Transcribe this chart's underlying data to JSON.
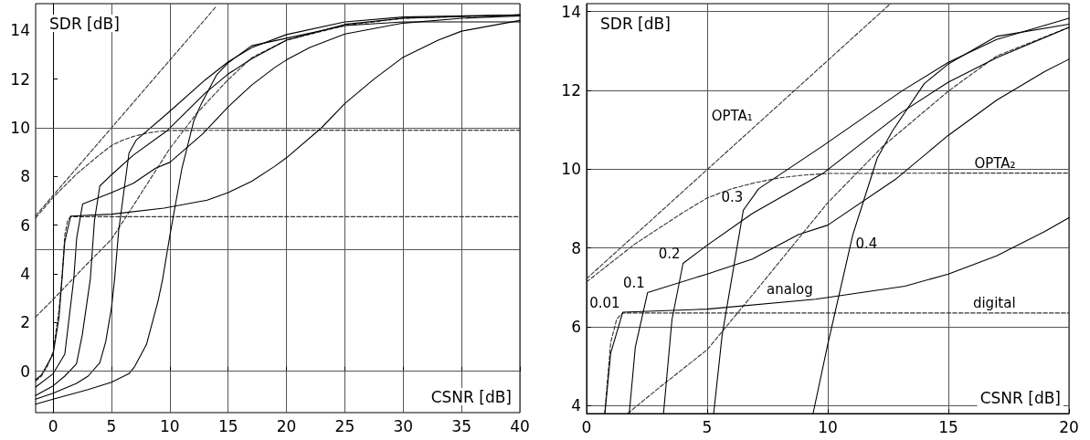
{
  "chart_data": [
    {
      "type": "line",
      "xlabel": "CSNR [dB]",
      "ylabel": "SDR [dB]",
      "xlim": [
        -1.5,
        40
      ],
      "ylim": [
        -1.7,
        15.1
      ],
      "xticks": [
        0,
        5,
        10,
        15,
        20,
        25,
        30,
        35,
        40
      ],
      "yticks": [
        0,
        2,
        4,
        6,
        8,
        10,
        12,
        14
      ],
      "grid": "x",
      "marker": "none",
      "ref_lines": [
        {
          "axis": "y",
          "value": 0,
          "color": "#555555"
        },
        {
          "axis": "y",
          "value": 5,
          "color": "#555555"
        },
        {
          "axis": "y",
          "value": 10,
          "color": "#555555"
        }
      ],
      "series": [
        {
          "color": "#333333",
          "line_style": "dashed",
          "x": [
            -1.5,
            -1,
            -0.5,
            0,
            0.5,
            0.75,
            1,
            1.25,
            1.5,
            40
          ],
          "values": [
            -0.4,
            -0.2,
            0.2,
            0.8,
            2.5,
            3.8,
            5.6,
            6.2,
            6.35,
            6.35
          ]
        },
        {
          "color": "#333333",
          "line_style": "dashed",
          "x": [
            -1.5,
            14
          ],
          "values": [
            6.39,
            15.0
          ]
        },
        {
          "color": "#333333",
          "line_style": "dashed",
          "x": [
            -1.5,
            0,
            2,
            4,
            5,
            6,
            7,
            8,
            9,
            10,
            15,
            40
          ],
          "values": [
            6.3,
            7.14,
            8.1,
            8.9,
            9.27,
            9.5,
            9.66,
            9.78,
            9.85,
            9.89,
            9.9,
            9.9
          ]
        },
        {
          "color": "#333333",
          "line_style": "dashed",
          "x": [
            -1.5,
            0,
            1.7,
            3,
            5,
            7,
            9,
            10,
            12.3,
            15,
            17,
            20,
            25,
            30,
            40
          ],
          "values": [
            2.23,
            2.95,
            3.8,
            4.45,
            5.42,
            6.9,
            8.4,
            9.15,
            10.59,
            11.98,
            12.87,
            13.6,
            14.2,
            14.5,
            14.64
          ]
        },
        {
          "color": "#000000",
          "line_style": "solid",
          "x": [
            -1.5,
            -1,
            0,
            0.5,
            0.76,
            1,
            1.5,
            5,
            9.5,
            13.2,
            15,
            17,
            19,
            20,
            23,
            25,
            27.5,
            30,
            33,
            35,
            40
          ],
          "values": [
            -0.35,
            -0.15,
            0.7,
            2.2,
            3.8,
            5.33,
            6.37,
            6.45,
            6.7,
            7.03,
            7.34,
            7.8,
            8.42,
            8.77,
            10,
            11,
            12,
            12.9,
            13.6,
            13.97,
            14.41
          ]
        },
        {
          "color": "#000000",
          "line_style": "solid",
          "x": [
            -1.5,
            0,
            1,
            1.77,
            2.02,
            2.53,
            5,
            6.88,
            8.78,
            10,
            12.8,
            15,
            17,
            19,
            20,
            22,
            25,
            30,
            35,
            40
          ],
          "values": [
            -0.65,
            -0.1,
            0.7,
            3.8,
            5.48,
            6.87,
            7.34,
            7.72,
            8.34,
            8.58,
            9.74,
            10.86,
            11.75,
            12.48,
            12.79,
            13.3,
            13.85,
            14.3,
            14.5,
            14.6
          ]
        },
        {
          "color": "#000000",
          "line_style": "solid",
          "x": [
            -1.5,
            0,
            1,
            2,
            2.5,
            3.19,
            3.54,
            4,
            5,
            6.88,
            9.79,
            13.06,
            15,
            17,
            20,
            25,
            30,
            40
          ],
          "values": [
            -1.0,
            -0.6,
            -0.2,
            0.3,
            1.5,
            3.8,
            6.18,
            7.61,
            8.07,
            8.88,
            9.89,
            11.44,
            12.21,
            12.83,
            13.6,
            14.25,
            14.5,
            14.64
          ]
        },
        {
          "color": "#000000",
          "line_style": "solid",
          "x": [
            -1.5,
            0,
            2,
            3,
            4,
            4.5,
            5,
            5.27,
            5.62,
            6.5,
            7.13,
            9.79,
            13.06,
            15,
            17,
            20,
            25,
            30,
            40
          ],
          "values": [
            -1.15,
            -0.9,
            -0.5,
            -0.2,
            0.35,
            1.2,
            2.6,
            3.8,
            5.79,
            8.96,
            9.5,
            10.59,
            11.98,
            12.71,
            13.29,
            13.83,
            14.35,
            14.55,
            14.64
          ]
        },
        {
          "color": "#000000",
          "line_style": "solid",
          "x": [
            -1.5,
            0,
            3,
            5,
            6.5,
            7,
            8,
            9,
            9.39,
            10,
            11.04,
            12.05,
            12.68,
            14,
            15,
            17,
            20,
            25,
            30,
            40
          ],
          "values": [
            -1.35,
            -1.15,
            -0.75,
            -0.45,
            -0.1,
            0.2,
            1.1,
            2.9,
            3.8,
            5.56,
            8.34,
            10.28,
            10.97,
            12.17,
            12.67,
            13.37,
            13.68,
            14.2,
            14.35,
            14.35
          ]
        }
      ]
    },
    {
      "type": "line",
      "xlabel": "CSNR [dB]",
      "ylabel": "SDR [dB]",
      "xlim": [
        0,
        20
      ],
      "ylim": [
        3.8,
        14.2
      ],
      "xticks": [
        0,
        5,
        10,
        15,
        20
      ],
      "yticks": [
        4,
        6,
        8,
        10,
        12,
        14
      ],
      "grid": true,
      "marker": "none",
      "annotations": [
        {
          "text": "OPTA₁",
          "x": 7.0,
          "y": 11.11
        },
        {
          "text": "OPTA₂",
          "x": 17.9,
          "y": 9.9
        },
        {
          "text": "0.01",
          "x": 1.5,
          "y": 6.37
        },
        {
          "text": "0.1",
          "x": 2.53,
          "y": 6.87
        },
        {
          "text": "0.2",
          "x": 4,
          "y": 7.61
        },
        {
          "text": "0.3",
          "x": 6.6,
          "y": 9.05
        },
        {
          "text": "0.4",
          "x": 11.04,
          "y": 8.34
        },
        {
          "text": "analog",
          "x": 9.5,
          "y": 6.7
        },
        {
          "text": "digital",
          "x": 17.9,
          "y": 6.35
        }
      ],
      "series": [
        {
          "color": "#333333",
          "line_style": "dashed",
          "x": [
            0.75,
            1,
            1.25,
            1.5,
            20
          ],
          "values": [
            3.8,
            5.6,
            6.2,
            6.35,
            6.35
          ]
        },
        {
          "color": "#333333",
          "line_style": "dashed",
          "x": [
            0,
            12.6
          ],
          "values": [
            7.22,
            14.2
          ]
        },
        {
          "color": "#333333",
          "line_style": "dashed",
          "x": [
            0,
            2,
            4,
            5,
            6,
            7,
            8,
            9,
            10,
            15,
            20
          ],
          "values": [
            7.14,
            8.1,
            8.9,
            9.27,
            9.5,
            9.66,
            9.78,
            9.85,
            9.89,
            9.9,
            9.9
          ]
        },
        {
          "color": "#333333",
          "line_style": "dashed",
          "x": [
            1.7,
            3,
            5,
            7,
            9,
            10,
            12.3,
            15,
            17,
            20
          ],
          "values": [
            3.8,
            4.45,
            5.42,
            6.9,
            8.4,
            9.15,
            10.59,
            11.98,
            12.87,
            13.6
          ]
        },
        {
          "color": "#000000",
          "line_style": "solid",
          "x": [
            0.76,
            1,
            1.5,
            5,
            9.5,
            13.2,
            15,
            17,
            19,
            20
          ],
          "values": [
            3.8,
            5.33,
            6.37,
            6.45,
            6.7,
            7.03,
            7.34,
            7.8,
            8.42,
            8.77
          ]
        },
        {
          "color": "#000000",
          "line_style": "solid",
          "x": [
            1.77,
            2.02,
            2.53,
            5,
            6.88,
            8.78,
            10,
            12.8,
            15,
            17,
            19,
            20
          ],
          "values": [
            3.8,
            5.48,
            6.87,
            7.34,
            7.72,
            8.34,
            8.58,
            9.74,
            10.86,
            11.75,
            12.48,
            12.79
          ]
        },
        {
          "color": "#000000",
          "line_style": "solid",
          "x": [
            3.19,
            3.54,
            4,
            5,
            6.88,
            9.79,
            13.06,
            15,
            17,
            20
          ],
          "values": [
            3.8,
            6.18,
            7.61,
            8.07,
            8.88,
            9.89,
            11.44,
            12.21,
            12.83,
            13.6
          ]
        },
        {
          "color": "#000000",
          "line_style": "solid",
          "x": [
            5.27,
            5.62,
            6.5,
            7.13,
            9.79,
            13.06,
            15,
            17,
            20
          ],
          "values": [
            3.8,
            5.79,
            8.96,
            9.5,
            10.59,
            11.98,
            12.71,
            13.29,
            13.83
          ]
        },
        {
          "color": "#000000",
          "line_style": "solid",
          "x": [
            9.39,
            10,
            11.04,
            12.05,
            12.68,
            14,
            15,
            17,
            20
          ],
          "values": [
            3.8,
            5.56,
            8.34,
            10.28,
            10.97,
            12.17,
            12.67,
            13.37,
            13.68
          ]
        }
      ]
    }
  ]
}
